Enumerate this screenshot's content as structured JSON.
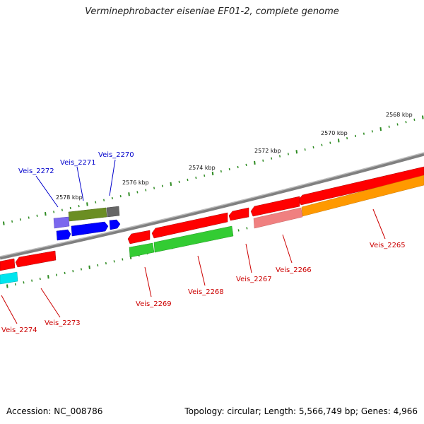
{
  "title": "Verminephrobacter eiseniae EF01-2, complete genome",
  "accession": "Accession: NC_008786",
  "summary": "Topology: circular; Length: 5,566,749 bp; Genes: 4,966",
  "colors": {
    "backbone": "#808080",
    "forward_gene": "#ff0000",
    "forward_cds": "#33cc33",
    "forward_pseudo": "#f08080",
    "forward_other": "#ff9900",
    "reverse_gene": "#0000ff",
    "reverse_cds_purple": "#7b68ee",
    "reverse_cds_olive": "#6b8e23",
    "reverse_grey": "#666666",
    "reverse_cyan": "#00e5ee",
    "tick": "#2e8b22",
    "label_forward": "#cc0000",
    "label_reverse": "#0000cc"
  },
  "tick_labels": [
    "2568 kbp",
    "2570 kbp",
    "2572 kbp",
    "2574 kbp",
    "2576 kbp",
    "2578 kbp"
  ],
  "genes": [
    {
      "id": "Veis_2265",
      "strand": "forward"
    },
    {
      "id": "Veis_2266",
      "strand": "forward"
    },
    {
      "id": "Veis_2267",
      "strand": "forward"
    },
    {
      "id": "Veis_2268",
      "strand": "forward"
    },
    {
      "id": "Veis_2269",
      "strand": "forward"
    },
    {
      "id": "Veis_2270",
      "strand": "reverse"
    },
    {
      "id": "Veis_2271",
      "strand": "reverse"
    },
    {
      "id": "Veis_2272",
      "strand": "reverse"
    },
    {
      "id": "Veis_2273",
      "strand": "forward"
    },
    {
      "id": "Veis_2274",
      "strand": "forward"
    }
  ]
}
